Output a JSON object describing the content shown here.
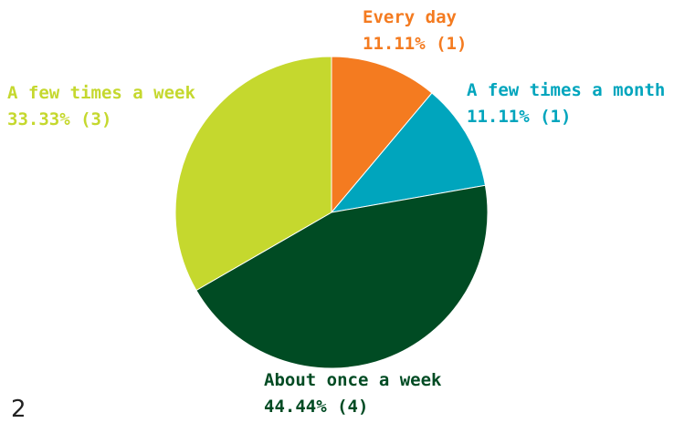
{
  "chart_data": {
    "type": "pie",
    "start_angle_deg": 0,
    "direction": "clockwise",
    "slices": [
      {
        "label": "Every day",
        "value": 1,
        "percent": "11.11%",
        "count": "(1)",
        "color": "#F47B20"
      },
      {
        "label": "A few times a month",
        "value": 1,
        "percent": "11.11%",
        "count": "(1)",
        "color": "#00A5BD"
      },
      {
        "label": "About once a week",
        "value": 4,
        "percent": "44.44%",
        "count": "(4)",
        "color": "#004B23"
      },
      {
        "label": "A few times a week",
        "value": 3,
        "percent": "33.33%",
        "count": "(3)",
        "color": "#C5D82E"
      }
    ]
  },
  "page": {
    "corner_glyph": "2"
  }
}
